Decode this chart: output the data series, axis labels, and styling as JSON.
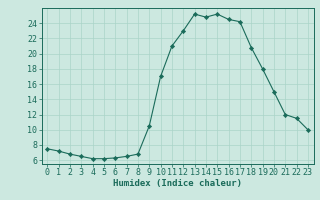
{
  "x": [
    0,
    1,
    2,
    3,
    4,
    5,
    6,
    7,
    8,
    9,
    10,
    11,
    12,
    13,
    14,
    15,
    16,
    17,
    18,
    19,
    20,
    21,
    22,
    23
  ],
  "y": [
    7.5,
    7.2,
    6.8,
    6.5,
    6.2,
    6.2,
    6.3,
    6.5,
    6.8,
    10.5,
    17.0,
    21.0,
    23.0,
    25.2,
    24.8,
    25.2,
    24.5,
    24.2,
    20.8,
    18.0,
    15.0,
    12.0,
    11.5,
    10.0
  ],
  "line_color": "#1a6b5a",
  "marker": "D",
  "marker_size": 2.2,
  "marker_color": "#1a6b5a",
  "bg_color": "#cce8e0",
  "grid_color": "#aad4c8",
  "xlabel": "Humidex (Indice chaleur)",
  "xlim": [
    -0.5,
    23.5
  ],
  "ylim": [
    5.5,
    26.0
  ],
  "yticks": [
    6,
    8,
    10,
    12,
    14,
    16,
    18,
    20,
    22,
    24
  ],
  "xticks": [
    0,
    1,
    2,
    3,
    4,
    5,
    6,
    7,
    8,
    9,
    10,
    11,
    12,
    13,
    14,
    15,
    16,
    17,
    18,
    19,
    20,
    21,
    22,
    23
  ],
  "label_fontsize": 6.5,
  "tick_fontsize": 6.0
}
